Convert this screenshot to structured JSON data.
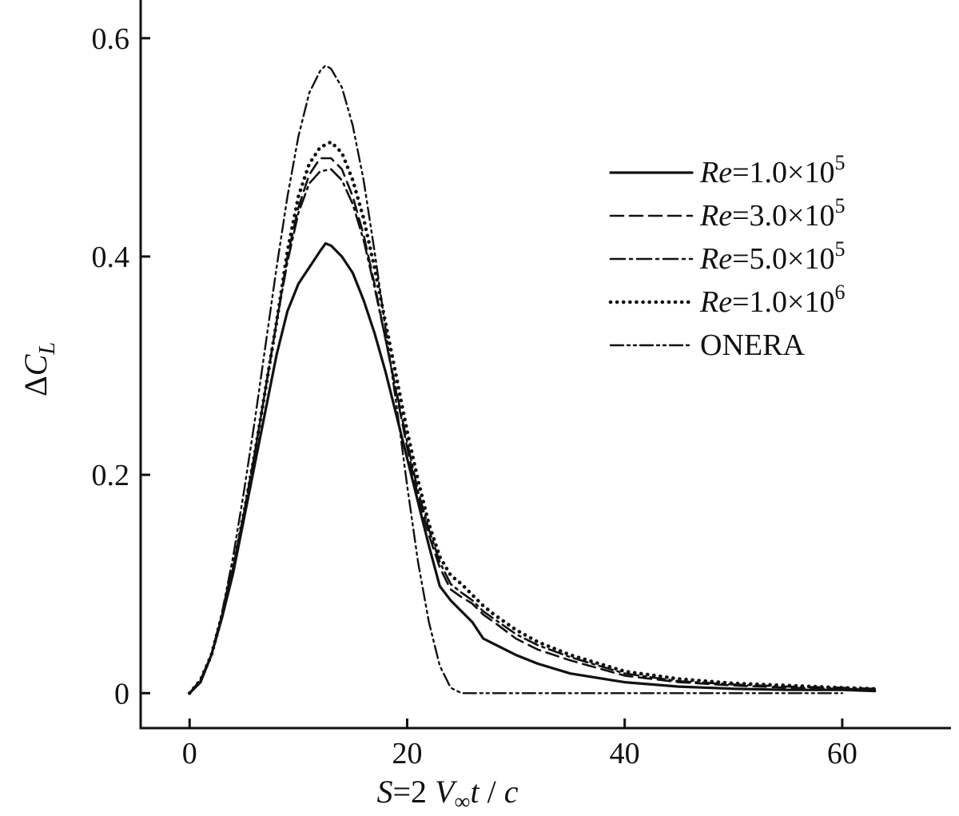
{
  "chart_data": {
    "type": "line",
    "title": "",
    "xlabel": "S=2 V∞t / c",
    "ylabel": "ΔCL",
    "xlim": [
      -4.5,
      70
    ],
    "ylim": [
      -0.032,
      0.635
    ],
    "xticks": [
      0,
      20,
      40,
      60
    ],
    "yticks": [
      0,
      0.2,
      0.4,
      0.6
    ],
    "xtick_labels": [
      "0",
      "20",
      "40",
      "60"
    ],
    "ytick_labels": [
      "0",
      "0.2",
      "0.4",
      "0.6"
    ],
    "grid": false,
    "legend_position": "top-right",
    "series": [
      {
        "name": "Re=1.0×10^5",
        "style": "solid",
        "x": [
          0,
          1,
          2,
          3,
          4,
          5,
          6,
          7,
          8,
          9,
          10,
          11,
          12,
          12.5,
          13,
          14,
          15,
          16,
          17,
          18,
          19,
          20,
          21,
          22,
          23,
          24,
          25,
          26,
          27,
          28,
          30,
          32,
          35,
          40,
          45,
          50,
          55,
          60,
          63
        ],
        "y": [
          0.0,
          0.01,
          0.035,
          0.07,
          0.11,
          0.16,
          0.21,
          0.26,
          0.31,
          0.35,
          0.375,
          0.39,
          0.405,
          0.412,
          0.41,
          0.4,
          0.385,
          0.36,
          0.33,
          0.295,
          0.255,
          0.215,
          0.175,
          0.135,
          0.098,
          0.085,
          0.075,
          0.065,
          0.05,
          0.045,
          0.035,
          0.027,
          0.018,
          0.01,
          0.006,
          0.004,
          0.003,
          0.003,
          0.002
        ]
      },
      {
        "name": "Re=3.0×10^5",
        "style": "dashed",
        "x": [
          0,
          1,
          2,
          3,
          4,
          5,
          6,
          7,
          8,
          9,
          10,
          11,
          12,
          13,
          14,
          15,
          16,
          17,
          18,
          19,
          20,
          21,
          22,
          23,
          24,
          25,
          26,
          27,
          28,
          30,
          32,
          35,
          40,
          45,
          50,
          55,
          60,
          63
        ],
        "y": [
          0.0,
          0.012,
          0.035,
          0.072,
          0.115,
          0.165,
          0.22,
          0.28,
          0.34,
          0.4,
          0.445,
          0.475,
          0.49,
          0.49,
          0.48,
          0.455,
          0.42,
          0.375,
          0.325,
          0.275,
          0.225,
          0.18,
          0.145,
          0.115,
          0.095,
          0.088,
          0.082,
          0.072,
          0.065,
          0.05,
          0.04,
          0.03,
          0.016,
          0.01,
          0.007,
          0.005,
          0.004,
          0.003
        ]
      },
      {
        "name": "Re=5.0×10^5",
        "style": "dashdot",
        "x": [
          0,
          1,
          2,
          3,
          4,
          5,
          6,
          7,
          8,
          9,
          10,
          11,
          12,
          13,
          14,
          15,
          16,
          17,
          18,
          19,
          20,
          21,
          22,
          23,
          24,
          25,
          26,
          27,
          28,
          30,
          32,
          35,
          40,
          45,
          50,
          55,
          60,
          63
        ],
        "y": [
          0.0,
          0.012,
          0.035,
          0.072,
          0.115,
          0.165,
          0.22,
          0.28,
          0.34,
          0.395,
          0.44,
          0.467,
          0.478,
          0.48,
          0.47,
          0.448,
          0.415,
          0.372,
          0.325,
          0.277,
          0.23,
          0.185,
          0.15,
          0.12,
          0.1,
          0.092,
          0.085,
          0.075,
          0.068,
          0.054,
          0.044,
          0.033,
          0.018,
          0.011,
          0.008,
          0.006,
          0.005,
          0.004
        ]
      },
      {
        "name": "Re=1.0×10^6",
        "style": "dotted",
        "x": [
          0,
          1,
          2,
          3,
          4,
          5,
          6,
          7,
          8,
          9,
          10,
          11,
          12,
          13,
          14,
          15,
          16,
          17,
          18,
          19,
          20,
          21,
          22,
          23,
          24,
          25,
          26,
          27,
          28,
          30,
          32,
          35,
          40,
          45,
          50,
          55,
          60,
          63
        ],
        "y": [
          0.0,
          0.012,
          0.035,
          0.072,
          0.115,
          0.165,
          0.22,
          0.28,
          0.34,
          0.405,
          0.455,
          0.485,
          0.5,
          0.505,
          0.495,
          0.47,
          0.435,
          0.39,
          0.34,
          0.29,
          0.24,
          0.195,
          0.155,
          0.125,
          0.108,
          0.1,
          0.09,
          0.08,
          0.072,
          0.058,
          0.047,
          0.035,
          0.02,
          0.013,
          0.009,
          0.007,
          0.005,
          0.004
        ]
      },
      {
        "name": "ONERA",
        "style": "dashdotdot",
        "x": [
          0,
          1,
          2,
          3,
          4,
          5,
          6,
          7,
          8,
          9,
          10,
          11,
          12,
          12.5,
          13,
          14,
          15,
          16,
          17,
          18,
          19,
          20,
          21,
          22,
          23,
          24,
          25,
          26,
          30,
          40,
          50,
          60
        ],
        "y": [
          0.0,
          0.012,
          0.035,
          0.075,
          0.125,
          0.185,
          0.25,
          0.32,
          0.39,
          0.455,
          0.51,
          0.55,
          0.57,
          0.575,
          0.572,
          0.555,
          0.52,
          0.47,
          0.405,
          0.335,
          0.265,
          0.19,
          0.12,
          0.065,
          0.025,
          0.005,
          0.0,
          0.0,
          0.0,
          0.0,
          0.0,
          0.0
        ]
      }
    ]
  },
  "legend": {
    "items": [
      {
        "prefix": "Re",
        "text": "=1.0×10",
        "exp": "5"
      },
      {
        "prefix": "Re",
        "text": "=3.0×10",
        "exp": "5"
      },
      {
        "prefix": "Re",
        "text": "=5.0×10",
        "exp": "5"
      },
      {
        "prefix": "Re",
        "text": "=1.0×10",
        "exp": "6"
      },
      {
        "prefix": "",
        "text": "ONERA",
        "exp": ""
      }
    ]
  },
  "axes": {
    "x_title": {
      "s": "S",
      "eq": "=2 ",
      "v": "V",
      "inf": "∞",
      "t": "t",
      "slash": " / ",
      "c": "c"
    },
    "y_title": {
      "delta": "Δ",
      "c": "C",
      "sub": "L"
    }
  }
}
